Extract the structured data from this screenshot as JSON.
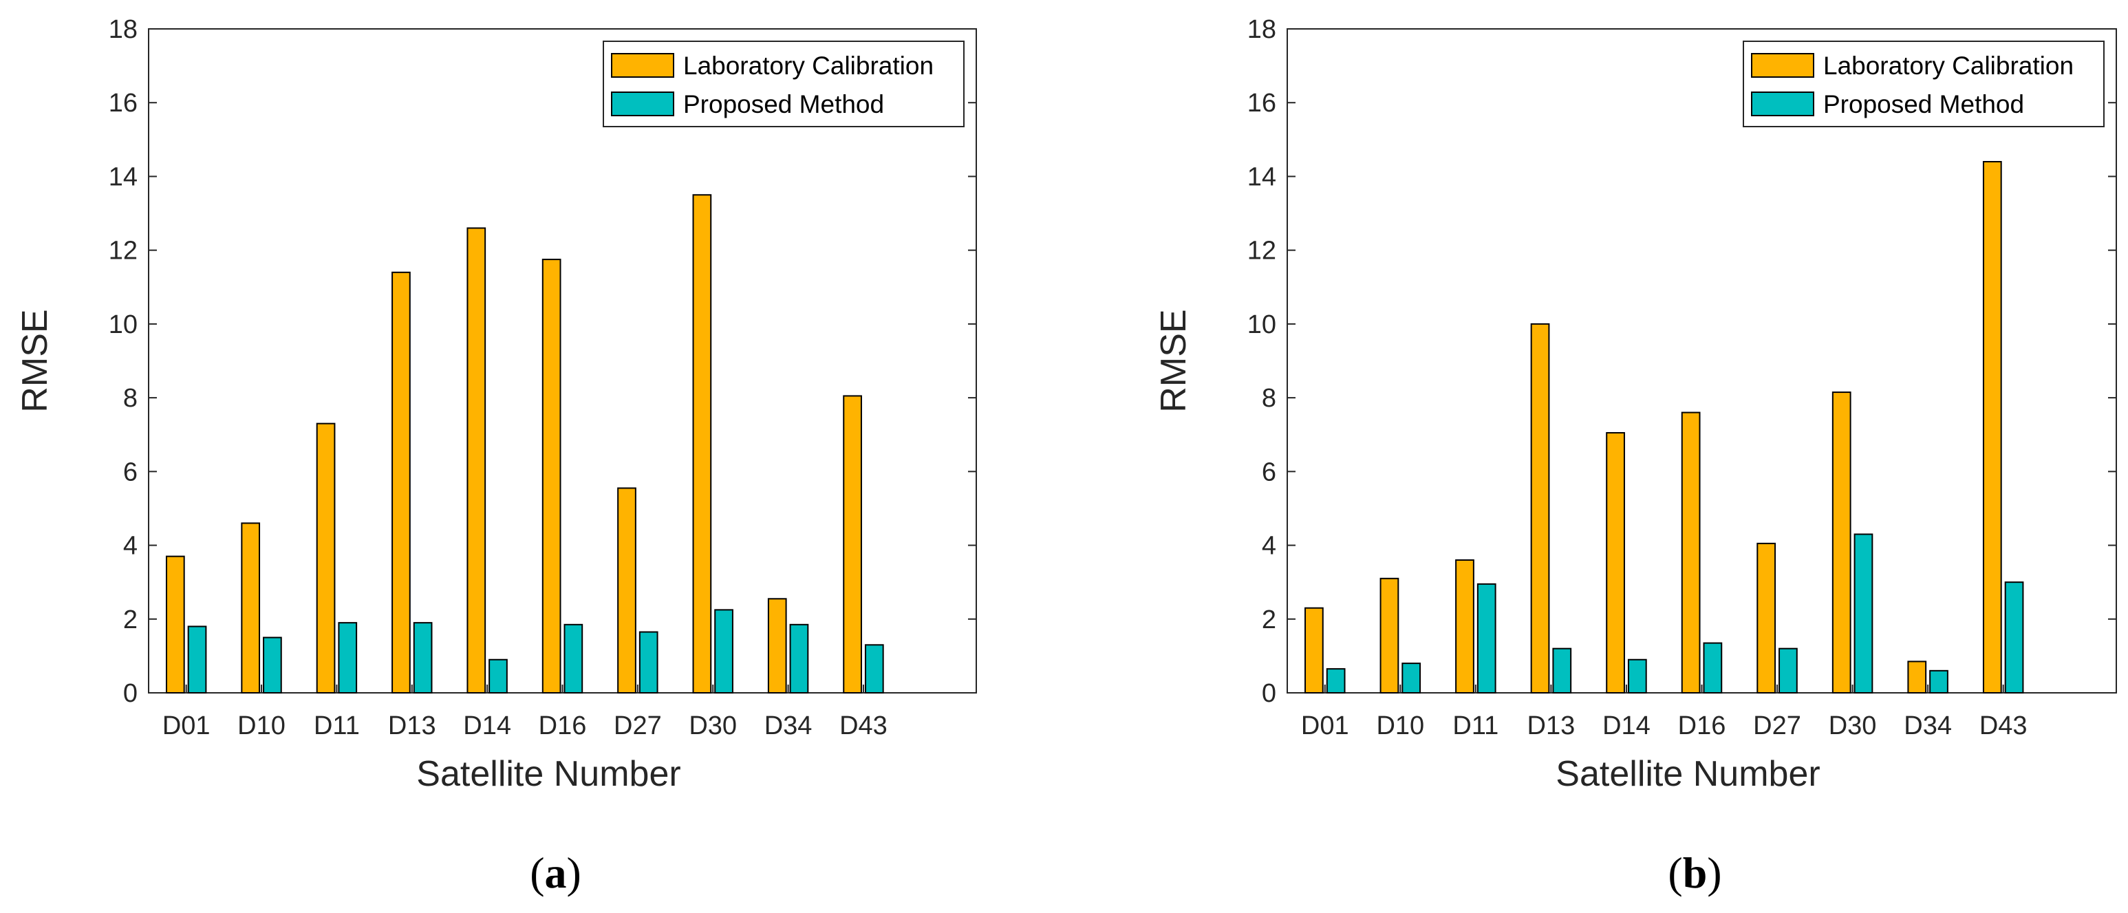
{
  "chart_data": [
    {
      "type": "bar",
      "panel_label": "a",
      "categories": [
        "D01",
        "D10",
        "D11",
        "D13",
        "D14",
        "D16",
        "D27",
        "D30",
        "D34",
        "D43"
      ],
      "series": [
        {
          "name": "Laboratory Calibration",
          "color": "#FFB300",
          "values": [
            3.7,
            4.6,
            7.3,
            11.4,
            12.6,
            11.75,
            5.55,
            13.5,
            2.55,
            8.05
          ]
        },
        {
          "name": "Proposed Method",
          "color": "#00BFBF",
          "values": [
            1.8,
            1.5,
            1.9,
            1.9,
            0.9,
            1.85,
            1.65,
            2.25,
            1.85,
            1.3
          ]
        }
      ],
      "xlabel": "Satellite Number",
      "ylabel": "RMSE",
      "ylim": [
        0,
        18
      ],
      "yticks": [
        "0",
        "2",
        "4",
        "6",
        "8",
        "10",
        "12",
        "14",
        "16",
        "18"
      ],
      "grid": false,
      "legend": "top-right"
    },
    {
      "type": "bar",
      "panel_label": "b",
      "categories": [
        "D01",
        "D10",
        "D11",
        "D13",
        "D14",
        "D16",
        "D27",
        "D30",
        "D34",
        "D43"
      ],
      "series": [
        {
          "name": "Laboratory Calibration",
          "color": "#FFB300",
          "values": [
            2.3,
            3.1,
            3.6,
            10.0,
            7.05,
            7.6,
            4.05,
            8.15,
            0.85,
            14.4
          ]
        },
        {
          "name": "Proposed Method",
          "color": "#00BFBF",
          "values": [
            0.65,
            0.8,
            2.95,
            1.2,
            0.9,
            1.35,
            1.2,
            4.3,
            0.6,
            3.0
          ]
        }
      ],
      "xlabel": "Satellite Number",
      "ylabel": "RMSE",
      "ylim": [
        0,
        18
      ],
      "yticks": [
        "0",
        "2",
        "4",
        "6",
        "8",
        "10",
        "12",
        "14",
        "16",
        "18"
      ],
      "grid": false,
      "legend": "top-right"
    }
  ]
}
